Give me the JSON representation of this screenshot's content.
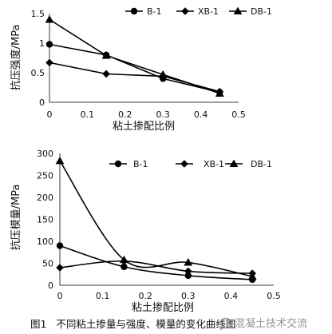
{
  "figure": {
    "caption": "图1   不同粘土掺量与强度、模量的变化曲线图",
    "watermark": "混凝土技术交流",
    "watermark_icon": "chat-bubble-icon"
  },
  "chart_data": [
    {
      "type": "line",
      "xlabel": "粘土掺配比例",
      "ylabel": "抗压强度/MPa",
      "x": [
        0,
        0.15,
        0.3,
        0.45
      ],
      "xlim": [
        0,
        0.5
      ],
      "ylim": [
        0,
        1.5
      ],
      "xticks": [
        "0",
        "0.1",
        "0.2",
        "0.3",
        "0.4",
        "0.5"
      ],
      "yticks": [
        "0",
        "0.5",
        "1",
        "1.5"
      ],
      "grid": false,
      "smooth": false,
      "legend_position": "top",
      "series": [
        {
          "name": "B-1",
          "marker": "circle",
          "values": [
            0.98,
            0.8,
            0.4,
            0.17
          ]
        },
        {
          "name": "XB-1",
          "marker": "diamond",
          "values": [
            0.67,
            0.48,
            0.44,
            0.18
          ]
        },
        {
          "name": "DB-1",
          "marker": "triangle",
          "values": [
            1.4,
            0.79,
            0.47,
            0.15
          ]
        }
      ]
    },
    {
      "type": "line",
      "xlabel": "粘土掺配比例",
      "ylabel": "抗压模量/MPa",
      "x": [
        0,
        0.15,
        0.3,
        0.45
      ],
      "xlim": [
        0,
        0.5
      ],
      "ylim": [
        0,
        300
      ],
      "xticks": [
        "0",
        "0.1",
        "0.2",
        "0.3",
        "0.4",
        "0.5"
      ],
      "yticks": [
        "0",
        "50",
        "100",
        "150",
        "200",
        "250",
        "300"
      ],
      "grid": false,
      "smooth": true,
      "legend_position": "top",
      "series": [
        {
          "name": "B-1",
          "marker": "circle",
          "values": [
            90,
            42,
            22,
            13
          ]
        },
        {
          "name": "XB-1",
          "marker": "diamond",
          "values": [
            40,
            55,
            32,
            27
          ]
        },
        {
          "name": "DB-1",
          "marker": "triangle",
          "values": [
            283,
            58,
            52,
            20
          ]
        }
      ]
    }
  ]
}
